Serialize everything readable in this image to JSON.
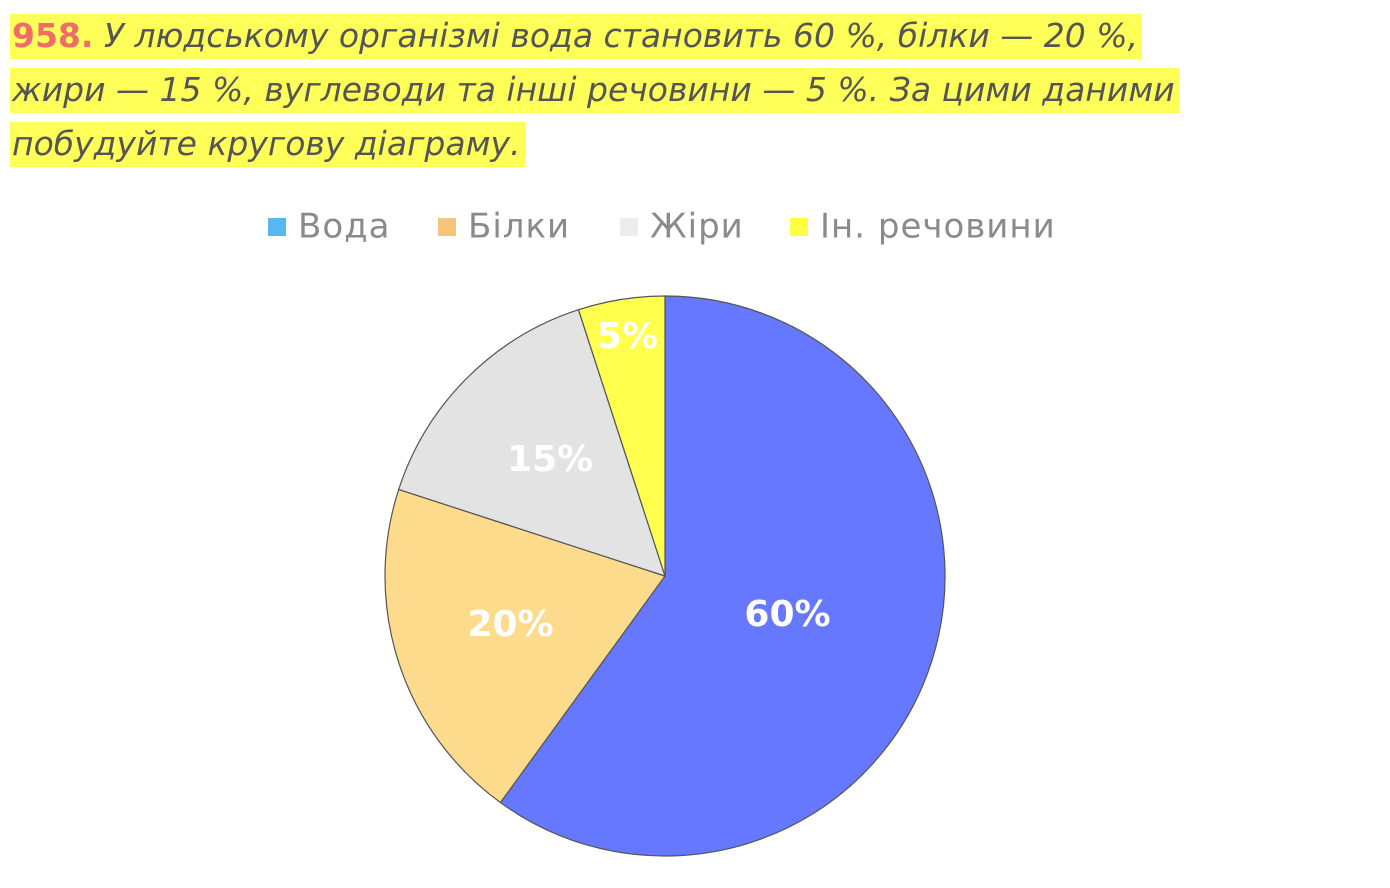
{
  "problem": {
    "number": "958.",
    "lines": [
      "У людському організмі вода становить 60 %, білки — 20 %,",
      "жири — 15 %, вуглеводи та інші речовини — 5 %. За цими даними",
      "побудуйте кругову діаграму."
    ]
  },
  "chart_data": {
    "type": "pie",
    "categories": [
      "Вода",
      "Білки",
      "Жіри",
      "Ін. речовини"
    ],
    "values": [
      60,
      20,
      15,
      5
    ],
    "value_labels": [
      "60%",
      "20%",
      "15%",
      "5%"
    ],
    "colors": [
      "#6678ff",
      "#fcdc8c",
      "#e3e3e3",
      "#ffff4d"
    ],
    "legend_colors": [
      "#58b6f0",
      "#f6c47a",
      "#ececec",
      "#ffff44"
    ],
    "legend": "top"
  }
}
